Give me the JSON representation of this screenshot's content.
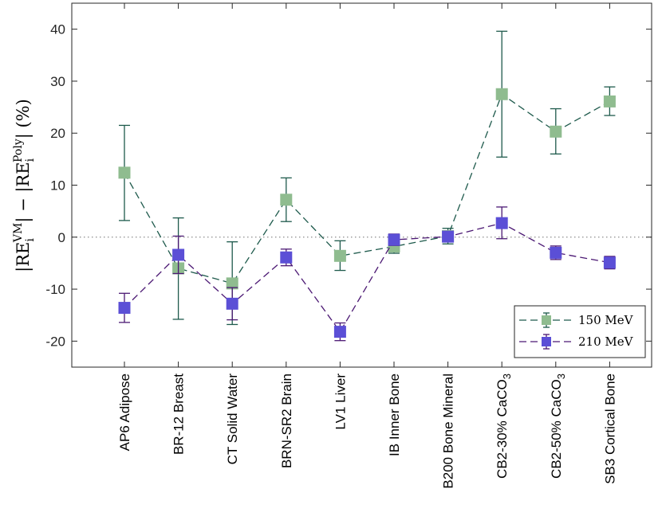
{
  "chart_data": {
    "type": "line",
    "title": "",
    "xlabel": "",
    "ylabel": "|RE_i^VM| − |RE_i^Poly| (%)",
    "ylabel_parts": {
      "open": "|RE",
      "sub": "i",
      "sup1": "VM",
      "mid": "| − |RE",
      "sup2": "Poly",
      "close": "| (%)"
    },
    "ylim": [
      -25,
      45
    ],
    "yticks": [
      -20,
      -10,
      0,
      10,
      20,
      30,
      40
    ],
    "ytick_labels": [
      "-20",
      "-10",
      "0",
      "10",
      "20",
      "30",
      "40"
    ],
    "categories": [
      "AP6 Adipose",
      "BR-12 Breast",
      "CT Solid Water",
      "BRN-SR2 Brain",
      "LV1 Liver",
      "IB Inner Bone",
      "B200 Bone Mineral",
      "CB2-30% CaCO3",
      "CB2-50% CaCO3",
      "SB3 Cortical Bone"
    ],
    "category_parts": [
      {
        "main": "AP6 Adipose",
        "sub": ""
      },
      {
        "main": "BR-12 Breast",
        "sub": ""
      },
      {
        "main": "CT Solid Water",
        "sub": ""
      },
      {
        "main": "BRN-SR2 Brain",
        "sub": ""
      },
      {
        "main": "LV1 Liver",
        "sub": ""
      },
      {
        "main": "IB Inner Bone",
        "sub": ""
      },
      {
        "main": "B200 Bone Mineral",
        "sub": ""
      },
      {
        "main": "CB2-30% CaCO",
        "sub": "3"
      },
      {
        "main": "CB2-50% CaCO",
        "sub": "3"
      },
      {
        "main": "SB3 Cortical Bone",
        "sub": ""
      }
    ],
    "reference_line": {
      "y": 0,
      "style": "dotted"
    },
    "series": [
      {
        "name": "150 MeV",
        "color": "#8fbc8f",
        "line_color": "#1e5a4c",
        "values": [
          12.4,
          -6.0,
          -8.9,
          7.2,
          -3.6,
          -1.8,
          0.2,
          27.5,
          20.3,
          26.1
        ],
        "err_low": [
          3.2,
          -15.8,
          -16.8,
          3.0,
          -6.4,
          -3.1,
          -1.3,
          15.4,
          16.0,
          23.4
        ],
        "err_high": [
          21.5,
          3.7,
          -0.9,
          11.4,
          -0.7,
          -0.5,
          1.7,
          39.6,
          24.7,
          28.9
        ]
      },
      {
        "name": "210 MeV",
        "color": "#5b4fd6",
        "line_color": "#4b1873",
        "values": [
          -13.6,
          -3.4,
          -12.8,
          -3.9,
          -18.2,
          -0.5,
          0.1,
          2.7,
          -3.0,
          -4.9
        ],
        "err_low": [
          -16.4,
          -7.0,
          -15.9,
          -5.5,
          -19.9,
          -1.6,
          -0.9,
          -0.3,
          -4.3,
          -6.1
        ],
        "err_high": [
          -10.8,
          0.2,
          -9.7,
          -2.3,
          -16.5,
          0.6,
          1.1,
          5.8,
          -1.7,
          -3.7
        ]
      }
    ],
    "legend": {
      "position": "bottom-right",
      "entries": [
        "150 MeV",
        "210 MeV"
      ]
    },
    "grid": false
  }
}
